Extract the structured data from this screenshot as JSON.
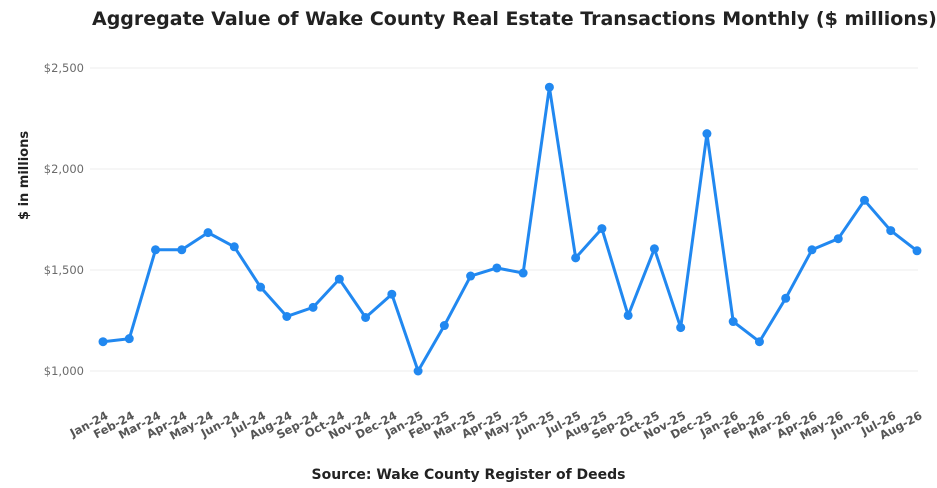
{
  "chart_data": {
    "type": "line",
    "title": "Aggregate Value of Wake County Real Estate Transactions Monthly ($ millions)",
    "xlabel": "Source: Wake County Register of Deeds",
    "ylabel": "$ in millions",
    "categories": [
      "Jan-24",
      "Feb-24",
      "Mar-24",
      "Apr-24",
      "May-24",
      "Jun-24",
      "Jul-24",
      "Aug-24",
      "Sep-24",
      "Oct-24",
      "Nov-24",
      "Dec-24",
      "Jan-25",
      "Feb-25",
      "Mar-25",
      "Apr-25",
      "May-25",
      "Jun-25",
      "Jul-25",
      "Aug-25",
      "Sep-25",
      "Oct-25",
      "Nov-25",
      "Dec-25",
      "Jan-26",
      "Feb-26",
      "Mar-26",
      "Apr-26",
      "May-26",
      "Jun-26",
      "Jul-26",
      "Aug-26"
    ],
    "series": [
      {
        "values": [
          1145,
          1160,
          1600,
          1600,
          1685,
          1615,
          1415,
          1270,
          1315,
          1455,
          1265,
          1380,
          1000,
          1225,
          1470,
          1510,
          1485,
          2405,
          1560,
          1705,
          1275,
          1605,
          1215,
          2175,
          1245,
          1145,
          1360,
          1600,
          1655,
          1845,
          1695,
          1595
        ]
      }
    ],
    "yticks": [
      1000,
      1500,
      2000,
      2500
    ],
    "ytick_labels": [
      "$1,000",
      "$1,500",
      "$2,000",
      "$2,500"
    ],
    "ylim": [
      1000,
      2500
    ],
    "grid": true,
    "line_color": "#2188f0"
  }
}
